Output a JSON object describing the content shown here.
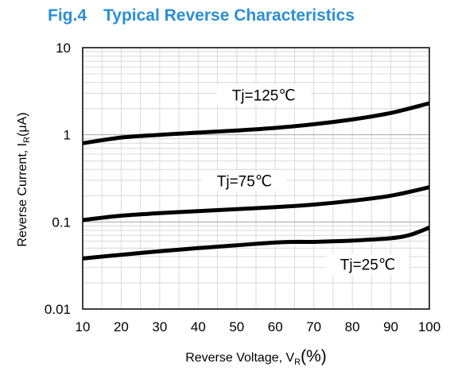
{
  "chart_data": {
    "type": "line",
    "title": "Fig.4 Typical Reverse Characteristics",
    "xlabel_main": "Reverse Voltage, V",
    "xlabel_sub": "R",
    "xlabel_unit": "(%)",
    "ylabel_main": "Reverse Current, I",
    "ylabel_sub": "R",
    "ylabel_unit": "(μA)",
    "x_scale": "linear",
    "y_scale": "log",
    "xlim": [
      10,
      100
    ],
    "ylim": [
      0.01,
      10
    ],
    "x_ticks": [
      "10",
      "20",
      "30",
      "40",
      "50",
      "60",
      "70",
      "80",
      "90",
      "100"
    ],
    "y_ticks": [
      "0.01",
      "0.1",
      "1",
      "10"
    ],
    "grid": true,
    "series": [
      {
        "name": "Tj=125℃",
        "x": [
          10,
          20,
          30,
          40,
          50,
          60,
          70,
          80,
          90,
          100
        ],
        "y": [
          0.8,
          0.93,
          1.0,
          1.06,
          1.12,
          1.2,
          1.32,
          1.5,
          1.78,
          2.3
        ]
      },
      {
        "name": "Tj=75℃",
        "x": [
          10,
          20,
          30,
          40,
          50,
          60,
          70,
          80,
          90,
          100
        ],
        "y": [
          0.105,
          0.118,
          0.126,
          0.133,
          0.14,
          0.148,
          0.158,
          0.175,
          0.2,
          0.25
        ]
      },
      {
        "name": "Tj=25℃",
        "x": [
          10,
          20,
          30,
          40,
          50,
          60,
          65,
          70,
          75,
          80,
          90,
          95,
          100
        ],
        "y": [
          0.038,
          0.042,
          0.046,
          0.05,
          0.054,
          0.058,
          0.059,
          0.059,
          0.06,
          0.061,
          0.065,
          0.071,
          0.086
        ]
      }
    ],
    "colors": {
      "title": "#2a8fd4",
      "line": "#000000",
      "grid": "#d9d9d9",
      "grid_major": "#a6a6a6"
    }
  }
}
